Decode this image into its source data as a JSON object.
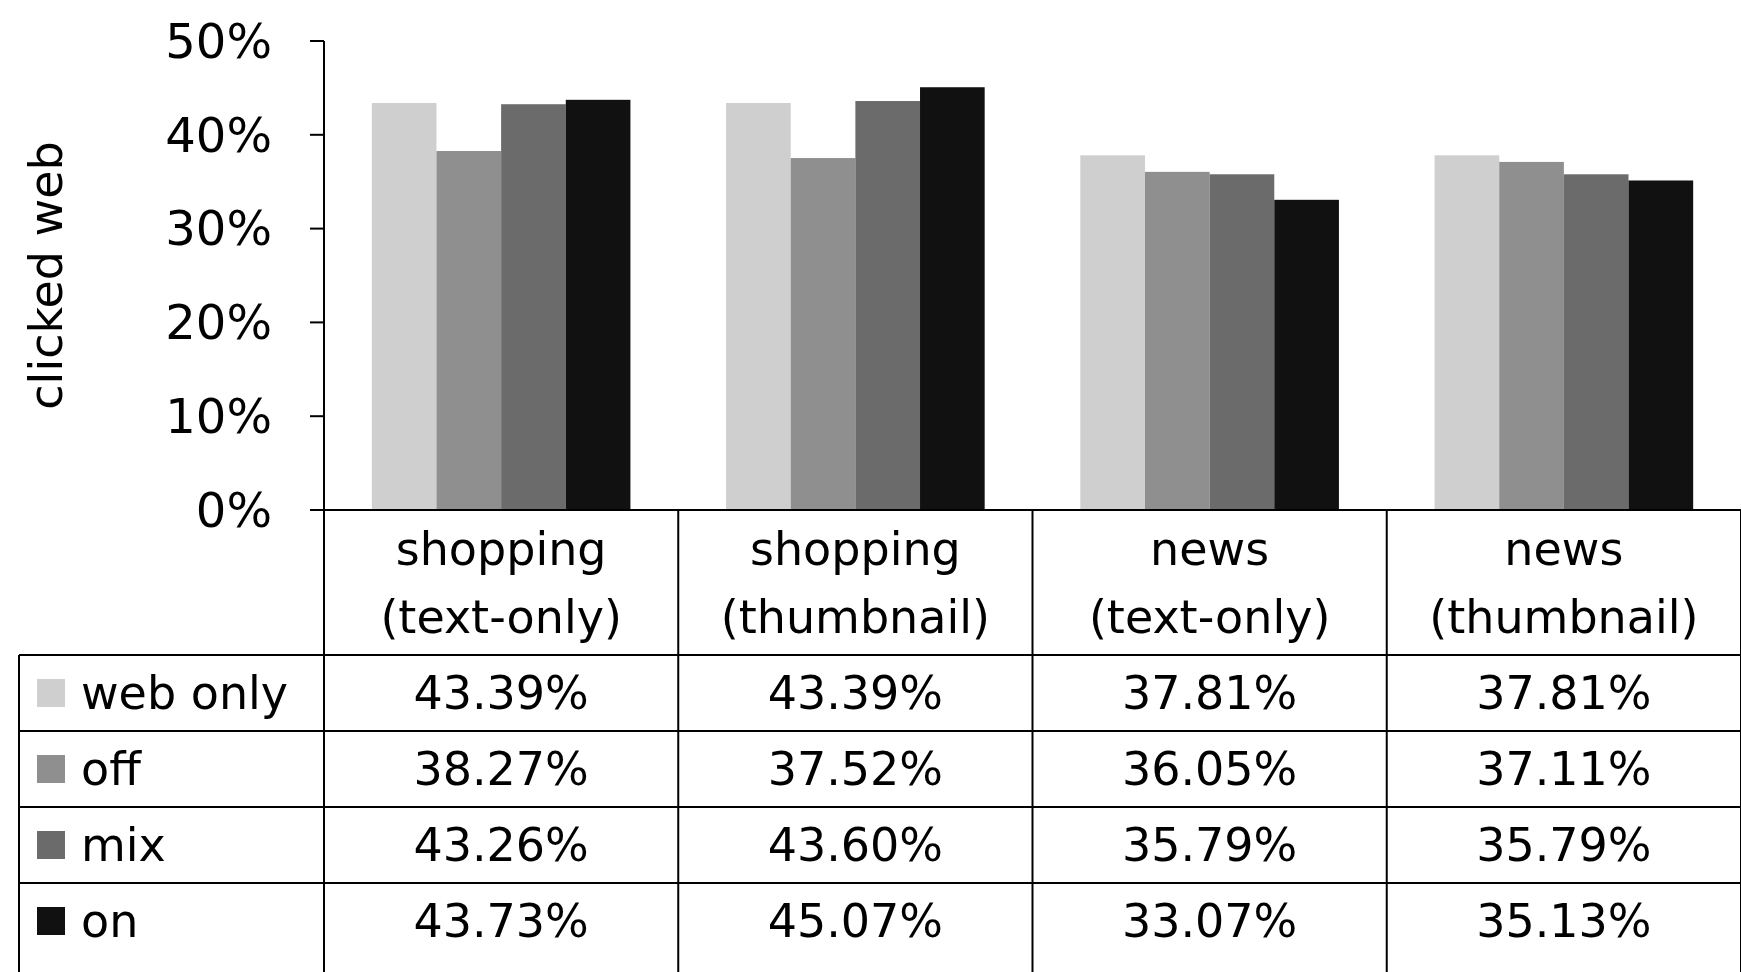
{
  "chart_data": {
    "type": "bar",
    "ylabel": "clicked web",
    "categories": [
      "shopping\n(text-only)",
      "shopping\n(thumbnail)",
      "news\n(text-only)",
      "news\n(thumbnail)"
    ],
    "series": [
      {
        "name": "web only",
        "color": "#cfcfcf",
        "values": [
          43.39,
          43.39,
          37.81,
          37.81
        ],
        "value_labels": [
          "43.39%",
          "43.39%",
          "37.81%",
          "37.81%"
        ]
      },
      {
        "name": "off",
        "color": "#8f8f8f",
        "values": [
          38.27,
          37.52,
          36.05,
          37.11
        ],
        "value_labels": [
          "38.27%",
          "37.52%",
          "36.05%",
          "37.11%"
        ]
      },
      {
        "name": "mix",
        "color": "#6b6b6b",
        "values": [
          43.26,
          43.6,
          35.79,
          35.79
        ],
        "value_labels": [
          "43.26%",
          "43.60%",
          "35.79%",
          "35.79%"
        ]
      },
      {
        "name": "on",
        "color": "#111111",
        "values": [
          43.73,
          45.07,
          33.07,
          35.13
        ],
        "value_labels": [
          "43.73%",
          "45.07%",
          "33.07%",
          "35.13%"
        ]
      }
    ],
    "ylim": [
      0,
      50
    ],
    "yticks": [
      {
        "value": 0,
        "label": "0%"
      },
      {
        "value": 10,
        "label": "10%"
      },
      {
        "value": 20,
        "label": "20%"
      },
      {
        "value": 30,
        "label": "30%"
      },
      {
        "value": 40,
        "label": "40%"
      },
      {
        "value": 50,
        "label": "50%"
      }
    ],
    "grid": false,
    "legend": "bottom"
  }
}
